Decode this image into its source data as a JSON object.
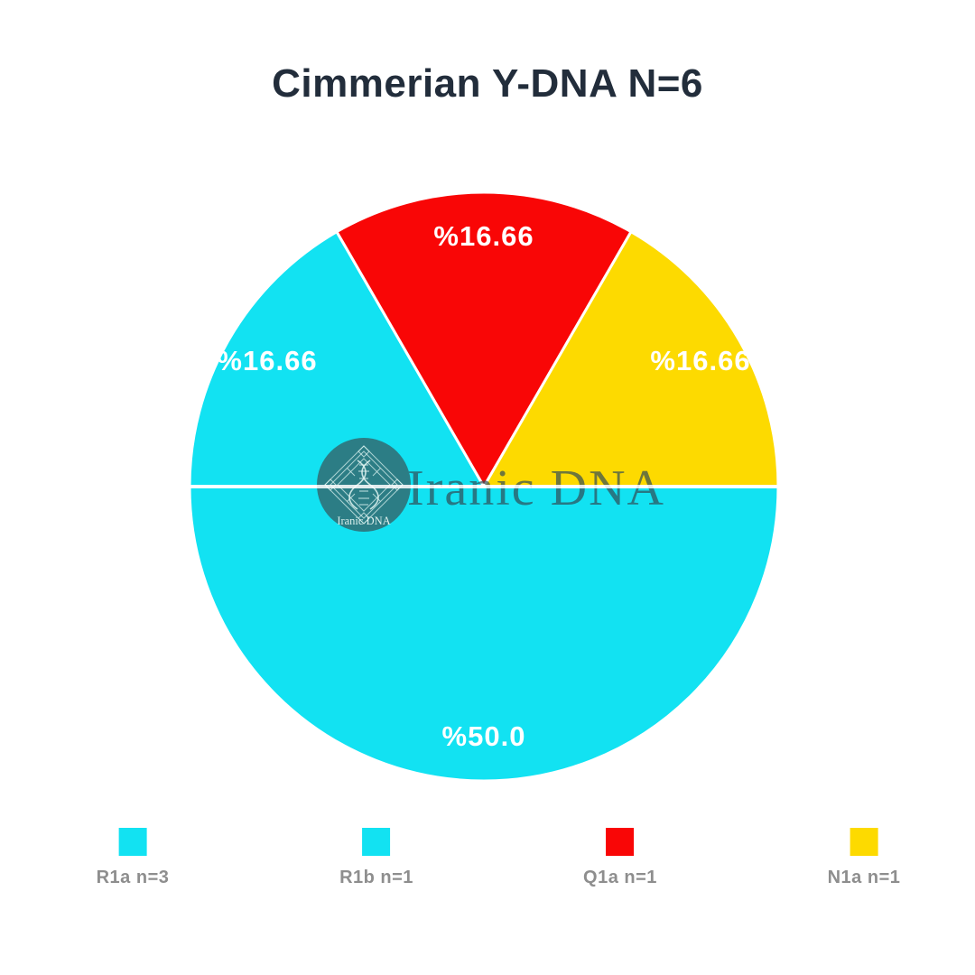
{
  "watermark": {
    "text": "Iranic DNA",
    "logo_text": "Iranic DNA",
    "text_color": "rgba(48,76,86,0.70)",
    "logo_circle_color": "#2F747C"
  },
  "background_color": "#FFFFFF",
  "chart_data": {
    "type": "pie",
    "title": "Cimmerian Y-DNA N=6",
    "total_n": 6,
    "title_color": "#222D3B",
    "label_color": "#FFFFFF",
    "legend_text_color": "#8E8E8E",
    "legend_position": "bottom",
    "label_distance": 0.85,
    "slices": [
      {
        "label": "R1a n=3",
        "haplogroup": "R1a",
        "n": 3,
        "percent": 50.0,
        "percent_label": "%50.0",
        "color": "#12E2F2",
        "start_angle": 180,
        "end_angle": 360
      },
      {
        "label": "R1b n=1",
        "haplogroup": "R1b",
        "n": 1,
        "percent": 16.66,
        "percent_label": "%16.66",
        "color": "#12E2F2",
        "start_angle": 120,
        "end_angle": 180
      },
      {
        "label": "Q1a n=1",
        "haplogroup": "Q1a",
        "n": 1,
        "percent": 16.66,
        "percent_label": "%16.66",
        "color": "#F90606",
        "start_angle": 60,
        "end_angle": 120
      },
      {
        "label": "N1a n=1",
        "haplogroup": "N1a",
        "n": 1,
        "percent": 16.66,
        "percent_label": "%16.66",
        "color": "#FDDA00",
        "start_angle": 0,
        "end_angle": 60
      }
    ]
  }
}
